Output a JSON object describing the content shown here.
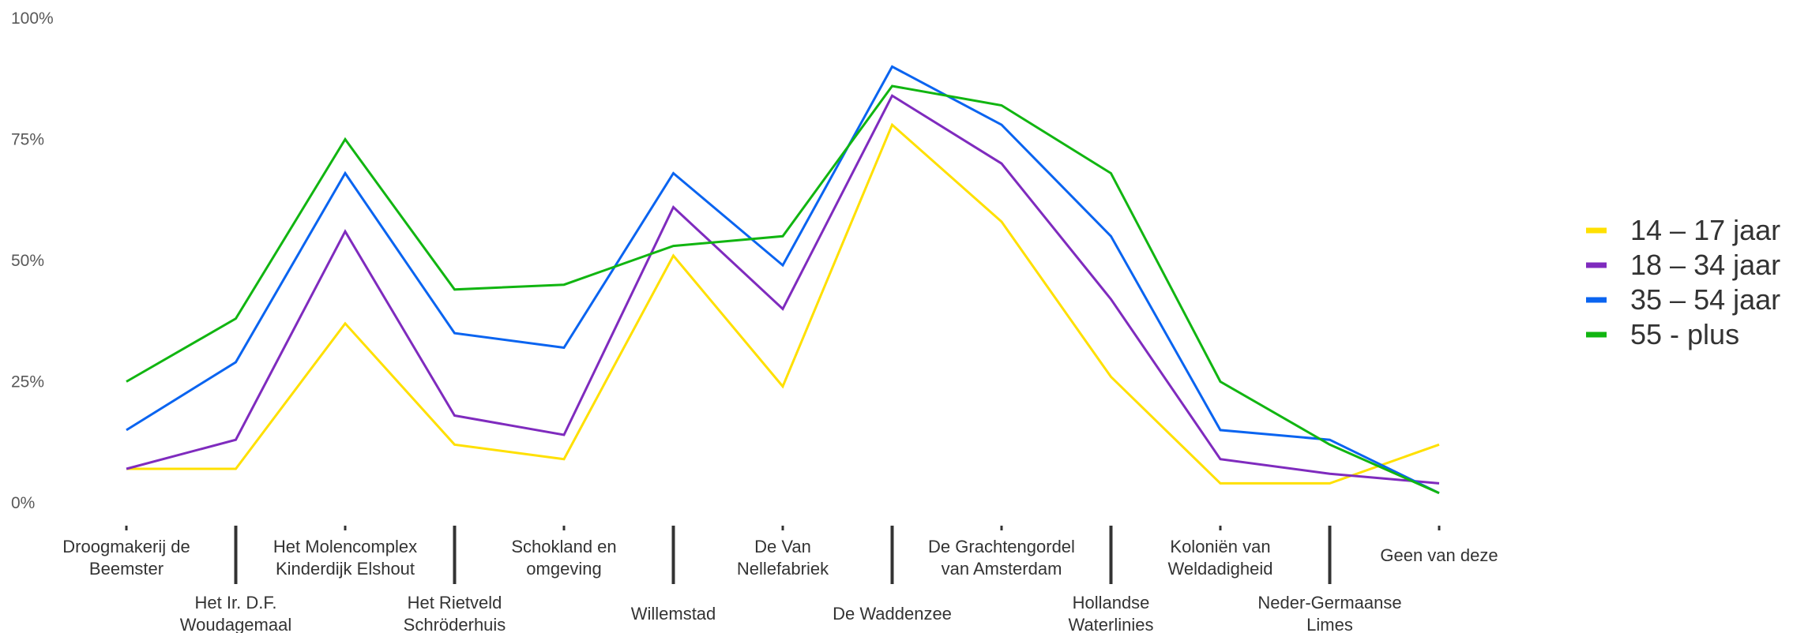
{
  "chart_data": {
    "type": "line",
    "y_ticks": [
      "0%",
      "25%",
      "50%",
      "75%",
      "100%"
    ],
    "ylim": [
      0,
      100
    ],
    "categories": [
      [
        "Droogmakerij de",
        "Beemster"
      ],
      [
        "Het Ir. D.F.",
        "Woudagemaal"
      ],
      [
        "Het Molencomplex",
        "Kinderdijk Elshout"
      ],
      [
        "Het Rietveld",
        "Schröderhuis"
      ],
      [
        "Schokland en",
        "omgeving"
      ],
      [
        "Willemstad"
      ],
      [
        "De Van",
        "Nellefabriek"
      ],
      [
        "De Waddenzee"
      ],
      [
        "De Grachtengordel",
        "van Amsterdam"
      ],
      [
        "Hollandse",
        "Waterlinies"
      ],
      [
        "Koloniën van",
        "Weldadigheid"
      ],
      [
        "Neder-Germaanse",
        "Limes"
      ],
      [
        "Geen van deze"
      ]
    ],
    "series": [
      {
        "name": "14 – 17 jaar",
        "color": "#FFE000",
        "values": [
          7,
          7,
          37,
          12,
          9,
          51,
          24,
          78,
          58,
          26,
          4,
          4,
          12
        ]
      },
      {
        "name": "18 – 34 jaar",
        "color": "#7F2BBE",
        "values": [
          7,
          13,
          56,
          18,
          14,
          61,
          40,
          84,
          70,
          42,
          9,
          6,
          4
        ]
      },
      {
        "name": "35 – 54 jaar",
        "color": "#0A64F0",
        "values": [
          15,
          29,
          68,
          35,
          32,
          68,
          49,
          90,
          78,
          55,
          15,
          13,
          2
        ]
      },
      {
        "name": "55 - plus",
        "color": "#11B511",
        "values": [
          25,
          38,
          75,
          44,
          45,
          53,
          55,
          86,
          82,
          68,
          25,
          12,
          2
        ]
      }
    ],
    "grid": false,
    "legend_position": "right"
  }
}
